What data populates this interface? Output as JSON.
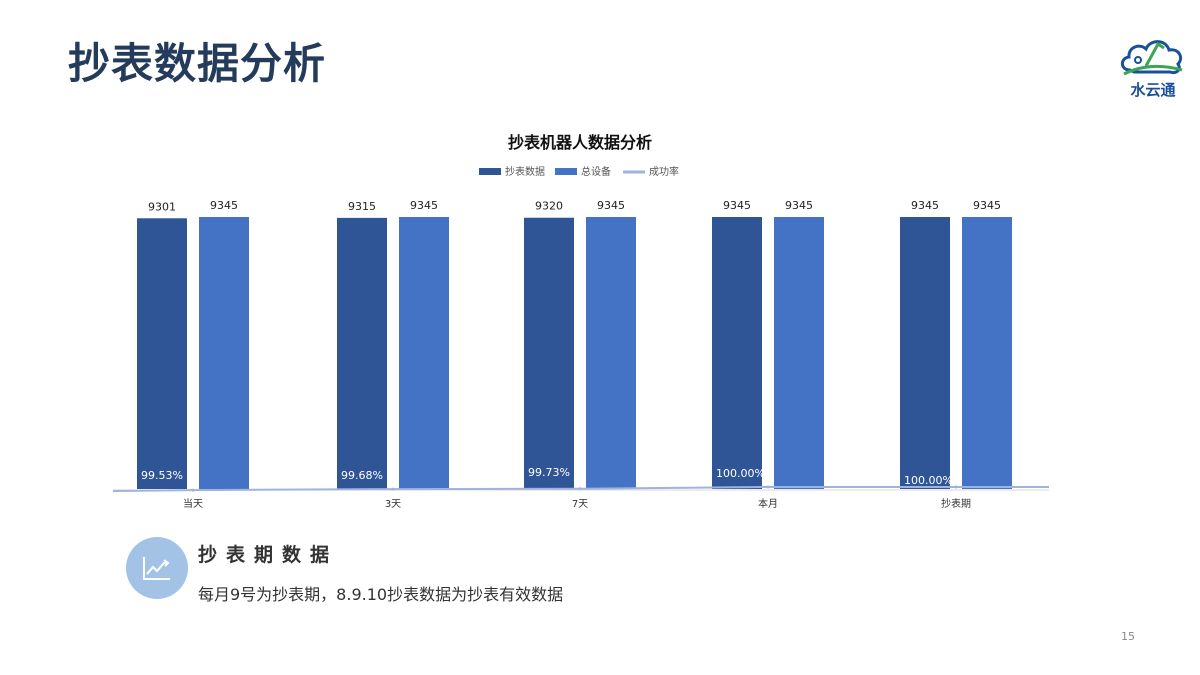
{
  "page": {
    "title": "抄表数据分析",
    "logo_text": "水云通",
    "page_number": "15"
  },
  "footer": {
    "heading": "抄表期数据",
    "description": "每月9号为抄表期，8.9.10抄表数据为抄表有效数据",
    "icon": "line-chart-icon"
  },
  "colors": {
    "series_meter": "#2f5597",
    "series_total": "#4472c4",
    "series_rate": "#9fb3dc",
    "title_text": "#243b5c"
  },
  "chart_data": {
    "type": "bar",
    "title": "抄表机器人数据分析",
    "categories": [
      "当天",
      "3天",
      "7天",
      "本月",
      "抄表期"
    ],
    "series": [
      {
        "name": "抄表数据",
        "type": "bar",
        "values": [
          9301,
          9315,
          9320,
          9345,
          9345
        ],
        "labels": [
          "9301",
          "9315",
          "9320",
          "9345",
          "9345"
        ]
      },
      {
        "name": "总设备",
        "type": "bar",
        "values": [
          9345,
          9345,
          9345,
          9345,
          9345
        ],
        "labels": [
          "9345",
          "9345",
          "9345",
          "9345",
          "9345"
        ]
      },
      {
        "name": "成功率",
        "type": "line",
        "values": [
          99.53,
          99.68,
          99.73,
          100.0,
          100.0
        ],
        "labels": [
          "99.53%",
          "99.68%",
          "99.73%",
          "100.00%",
          "100.00%"
        ]
      }
    ],
    "ylim": [
      0,
      9345
    ],
    "legend": "top",
    "grid": false
  }
}
